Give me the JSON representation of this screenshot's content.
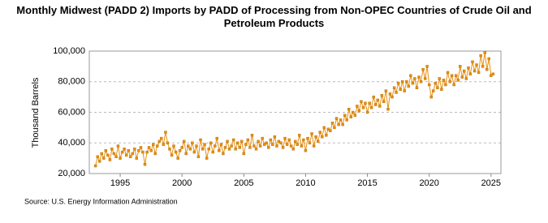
{
  "chart_data": {
    "type": "line",
    "title": "Monthly Midwest (PADD 2) Imports by PADD of Processing from Non-OPEC Countries of Crude Oil and Petroleum Products",
    "y_label": "Thousand Barrels",
    "source": "Source: U.S. Energy Information Administration",
    "xlim": [
      1992.5,
      2025.8
    ],
    "xticks": [
      1995,
      2000,
      2005,
      2010,
      2015,
      2020,
      2025
    ],
    "ylim": [
      20000,
      100000
    ],
    "yticks": [
      {
        "value": 20000,
        "label": "20,000"
      },
      {
        "value": 40000,
        "label": "40,000"
      },
      {
        "value": 60000,
        "label": "60,000"
      },
      {
        "value": 80000,
        "label": "80,000"
      },
      {
        "value": 100000,
        "label": "100,000"
      }
    ],
    "grid": true,
    "color": "#e8900f",
    "x": [
      1993,
      1993.17,
      1993.33,
      1993.5,
      1993.67,
      1993.83,
      1994,
      1994.17,
      1994.33,
      1994.5,
      1994.67,
      1994.83,
      1995,
      1995.17,
      1995.33,
      1995.5,
      1995.67,
      1995.83,
      1996,
      1996.17,
      1996.33,
      1996.5,
      1996.67,
      1996.83,
      1997,
      1997.17,
      1997.33,
      1997.5,
      1997.67,
      1997.83,
      1998,
      1998.17,
      1998.33,
      1998.5,
      1998.67,
      1998.83,
      1999,
      1999.17,
      1999.33,
      1999.5,
      1999.67,
      1999.83,
      2000,
      2000.17,
      2000.33,
      2000.5,
      2000.67,
      2000.83,
      2001,
      2001.17,
      2001.33,
      2001.5,
      2001.67,
      2001.83,
      2002,
      2002.17,
      2002.33,
      2002.5,
      2002.67,
      2002.83,
      2003,
      2003.17,
      2003.33,
      2003.5,
      2003.67,
      2003.83,
      2004,
      2004.17,
      2004.33,
      2004.5,
      2004.67,
      2004.83,
      2005,
      2005.17,
      2005.33,
      2005.5,
      2005.67,
      2005.83,
      2006,
      2006.17,
      2006.33,
      2006.5,
      2006.67,
      2006.83,
      2007,
      2007.17,
      2007.33,
      2007.5,
      2007.67,
      2007.83,
      2008,
      2008.17,
      2008.33,
      2008.5,
      2008.67,
      2008.83,
      2009,
      2009.17,
      2009.33,
      2009.5,
      2009.67,
      2009.83,
      2010,
      2010.17,
      2010.33,
      2010.5,
      2010.67,
      2010.83,
      2011,
      2011.17,
      2011.33,
      2011.5,
      2011.67,
      2011.83,
      2012,
      2012.17,
      2012.33,
      2012.5,
      2012.67,
      2012.83,
      2013,
      2013.17,
      2013.33,
      2013.5,
      2013.67,
      2013.83,
      2014,
      2014.17,
      2014.33,
      2014.5,
      2014.67,
      2014.83,
      2015,
      2015.17,
      2015.33,
      2015.5,
      2015.67,
      2015.83,
      2016,
      2016.17,
      2016.33,
      2016.5,
      2016.67,
      2016.83,
      2017,
      2017.17,
      2017.33,
      2017.5,
      2017.67,
      2017.83,
      2018,
      2018.17,
      2018.33,
      2018.5,
      2018.67,
      2018.83,
      2019,
      2019.17,
      2019.33,
      2019.5,
      2019.67,
      2019.83,
      2020,
      2020.17,
      2020.33,
      2020.5,
      2020.67,
      2020.83,
      2021,
      2021.17,
      2021.33,
      2021.5,
      2021.67,
      2021.83,
      2022,
      2022.17,
      2022.33,
      2022.5,
      2022.67,
      2022.83,
      2023,
      2023.17,
      2023.33,
      2023.5,
      2023.67,
      2023.83,
      2024,
      2024.17,
      2024.33,
      2024.5,
      2024.67,
      2024.83,
      2025,
      2025.17
    ],
    "values": [
      25000,
      31000,
      28000,
      33000,
      30000,
      35000,
      32000,
      29000,
      36000,
      33000,
      31000,
      38000,
      30000,
      34000,
      36000,
      32000,
      35000,
      31000,
      33000,
      36000,
      30000,
      35000,
      37000,
      34000,
      26000,
      34000,
      37000,
      35000,
      39000,
      33000,
      38000,
      41000,
      43000,
      39000,
      47000,
      40000,
      36000,
      32000,
      38000,
      34000,
      30000,
      35000,
      37000,
      41000,
      33000,
      38000,
      36000,
      40000,
      34000,
      38000,
      31000,
      42000,
      36000,
      39000,
      30000,
      36000,
      40000,
      34000,
      38000,
      43000,
      35000,
      39000,
      33000,
      37000,
      41000,
      36000,
      38000,
      42000,
      36000,
      40000,
      37000,
      41000,
      33000,
      39000,
      42000,
      37000,
      45000,
      38000,
      36000,
      41000,
      38000,
      43000,
      39000,
      40000,
      37000,
      42000,
      39000,
      44000,
      38000,
      41000,
      40000,
      37000,
      43000,
      39000,
      42000,
      38000,
      36000,
      41000,
      39000,
      45000,
      38000,
      42000,
      35000,
      43000,
      40000,
      46000,
      38000,
      44000,
      41000,
      47000,
      44000,
      50000,
      45000,
      49000,
      48000,
      53000,
      50000,
      56000,
      52000,
      55000,
      52000,
      58000,
      55000,
      62000,
      57000,
      60000,
      58000,
      64000,
      61000,
      67000,
      63000,
      66000,
      60000,
      66000,
      63000,
      70000,
      65000,
      68000,
      64000,
      71000,
      67000,
      74000,
      62000,
      72000,
      70000,
      76000,
      73000,
      79000,
      75000,
      80000,
      74000,
      80000,
      77000,
      84000,
      79000,
      82000,
      76000,
      83000,
      80000,
      88000,
      82000,
      90000,
      78000,
      70000,
      74000,
      79000,
      76000,
      82000,
      75000,
      81000,
      78000,
      86000,
      80000,
      84000,
      78000,
      84000,
      81000,
      90000,
      83000,
      87000,
      82000,
      89000,
      85000,
      93000,
      87000,
      91000,
      86000,
      97000,
      90000,
      99000,
      88000,
      95000,
      84000,
      85000
    ]
  }
}
